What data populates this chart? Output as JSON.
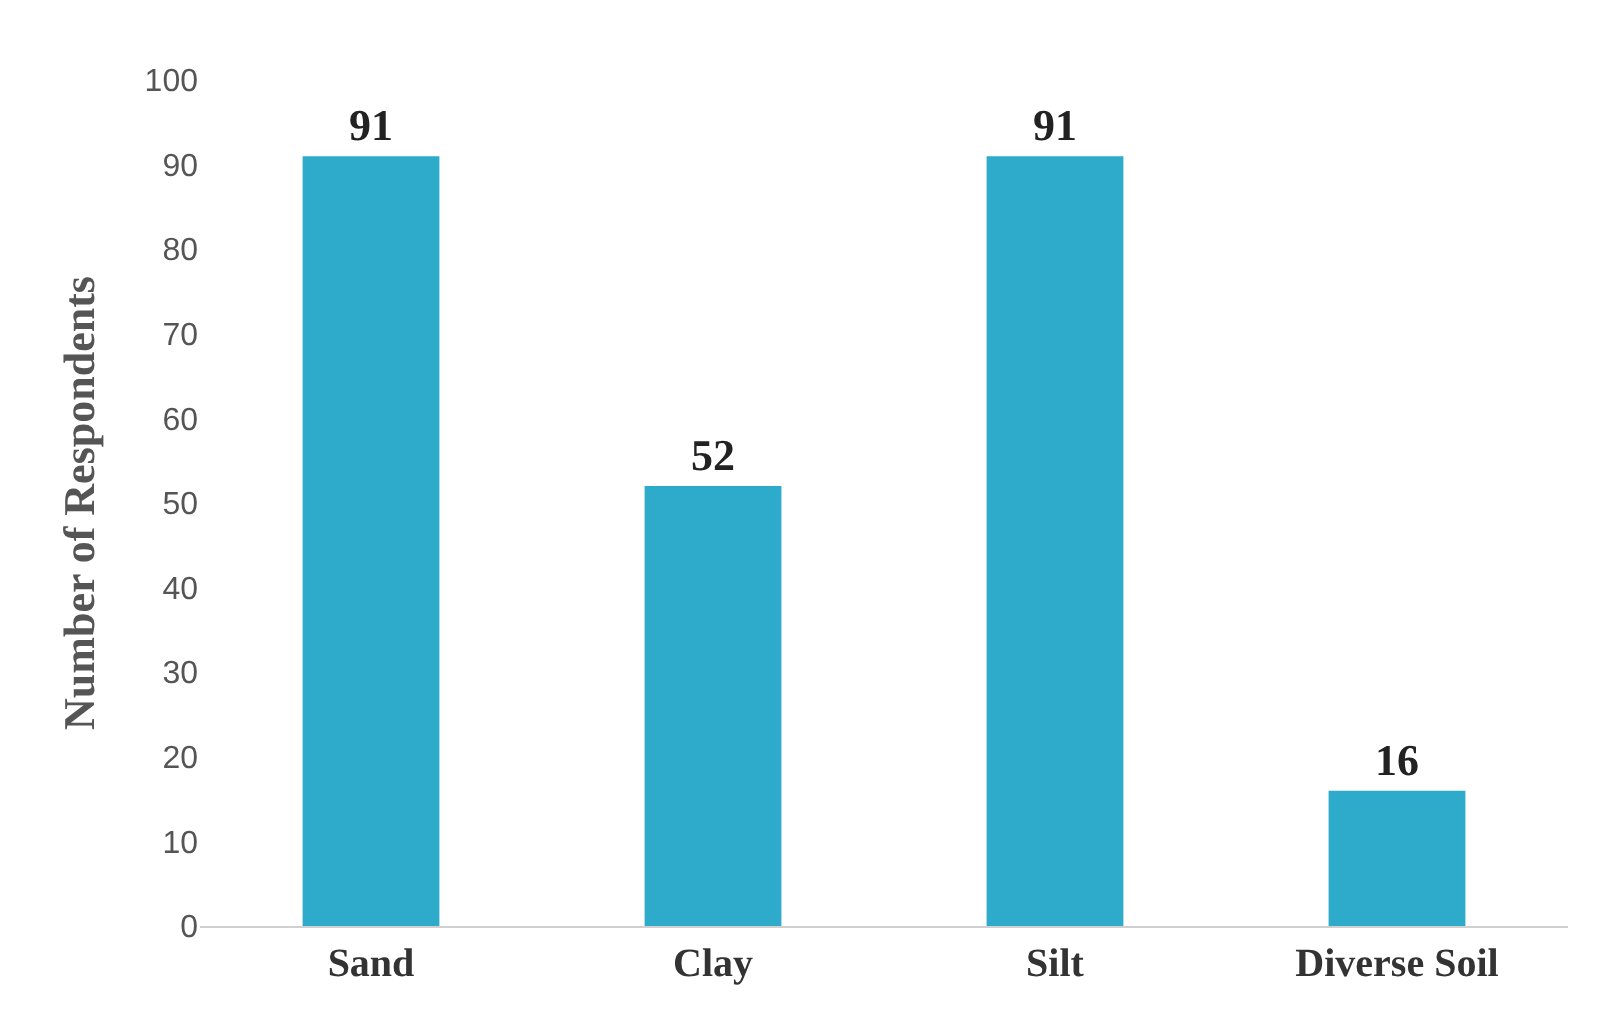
{
  "chart_data": {
    "type": "bar",
    "ylabel": "Number of Respondents",
    "categories": [
      "Sand",
      "Clay",
      "Silt",
      "Diverse Soil"
    ],
    "values": [
      91,
      52,
      91,
      16
    ],
    "color": "#2eaacb",
    "data_labels": true,
    "ylim": [
      0,
      100
    ],
    "yticks": [
      0,
      10,
      20,
      30,
      40,
      50,
      60,
      70,
      80,
      90,
      100
    ]
  }
}
